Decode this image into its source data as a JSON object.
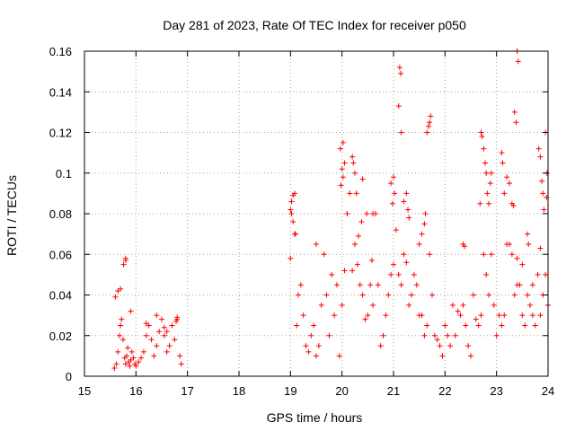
{
  "chart_data": {
    "type": "scatter",
    "title": "Day 281 of 2023, Rate Of TEC Index for receiver p050",
    "xlabel": "GPS time / hours",
    "ylabel": "ROTI / TECUs",
    "xlim": [
      15,
      24
    ],
    "ylim": [
      0,
      0.16
    ],
    "xticks": [
      "15",
      "16",
      "17",
      "18",
      "19",
      "20",
      "21",
      "22",
      "23",
      "24"
    ],
    "yticks": [
      "0",
      "0.02",
      "0.04",
      "0.06",
      "0.08",
      "0.1",
      "0.12",
      "0.14",
      "0.16"
    ],
    "grid": true,
    "marker": "+",
    "color": "#ff0000",
    "series": [
      {
        "name": "p050",
        "x": [
          15.58,
          15.62,
          15.65,
          15.68,
          15.7,
          15.72,
          15.75,
          15.78,
          15.8,
          15.82,
          15.84,
          15.86,
          15.88,
          15.9,
          15.92,
          15.95,
          15.98,
          16.0,
          16.05,
          16.1,
          16.15,
          16.2,
          16.25,
          16.3,
          16.35,
          16.4,
          16.45,
          16.5,
          16.55,
          16.6,
          16.65,
          16.7,
          16.75,
          16.8,
          16.85,
          16.88,
          15.6,
          15.7,
          15.8,
          15.9,
          16.2,
          16.4,
          16.6,
          16.8,
          15.76,
          15.8,
          15.65,
          16.55,
          16.78,
          19.0,
          19.02,
          19.05,
          19.08,
          19.1,
          19.12,
          19.15,
          19.2,
          19.25,
          19.3,
          19.35,
          19.4,
          19.45,
          19.5,
          19.55,
          19.6,
          19.65,
          19.7,
          19.75,
          19.8,
          19.85,
          19.9,
          19.95,
          20.0,
          20.05,
          20.1,
          20.15,
          20.2,
          20.25,
          20.3,
          20.35,
          20.4,
          20.45,
          20.5,
          20.55,
          20.6,
          20.65,
          20.7,
          20.75,
          20.8,
          20.85,
          20.9,
          20.95,
          21.0,
          21.05,
          21.1,
          21.15,
          21.2,
          21.25,
          21.3,
          21.35,
          21.4,
          21.45,
          21.5,
          21.55,
          21.6,
          21.65,
          21.7,
          21.75,
          21.8,
          21.85,
          21.9,
          21.95,
          22.0,
          22.05,
          22.1,
          22.15,
          22.2,
          22.25,
          22.3,
          22.35,
          22.4,
          22.45,
          22.5,
          22.55,
          22.6,
          22.65,
          22.7,
          22.75,
          22.8,
          22.85,
          22.9,
          22.95,
          23.0,
          23.05,
          23.1,
          23.15,
          23.2,
          23.25,
          23.3,
          23.35,
          23.4,
          23.45,
          23.5,
          23.55,
          23.6,
          23.65,
          23.7,
          23.75,
          23.8,
          23.85,
          23.9,
          23.95,
          24.0,
          19.0,
          19.05,
          19.02,
          19.08,
          19.5,
          20.0,
          20.05,
          20.02,
          19.98,
          20.2,
          20.25,
          20.28,
          20.22,
          20.02,
          19.97,
          20.48,
          20.4,
          20.38,
          20.32,
          20.6,
          20.58,
          21.0,
          20.95,
          20.98,
          21.02,
          21.12,
          21.14,
          21.1,
          21.15,
          21.2,
          21.25,
          21.28,
          21.3,
          21.7,
          21.72,
          21.68,
          21.65,
          21.62,
          21.6,
          21.55,
          21.5,
          22.35,
          22.38,
          22.7,
          22.72,
          22.75,
          22.78,
          22.8,
          22.82,
          22.85,
          22.68,
          22.9,
          22.88,
          23.1,
          23.12,
          23.15,
          23.2,
          23.25,
          23.3,
          23.33,
          23.35,
          23.38,
          23.4,
          23.42,
          23.6,
          23.62,
          23.82,
          23.85,
          23.88,
          23.9,
          23.92,
          23.95,
          23.98,
          23.97,
          23.85,
          23.4,
          23.5,
          23.7
        ],
        "y": [
          0.004,
          0.006,
          0.012,
          0.02,
          0.025,
          0.028,
          0.018,
          0.009,
          0.006,
          0.01,
          0.014,
          0.007,
          0.005,
          0.008,
          0.012,
          0.009,
          0.006,
          0.005,
          0.007,
          0.009,
          0.012,
          0.02,
          0.025,
          0.018,
          0.01,
          0.015,
          0.022,
          0.028,
          0.02,
          0.012,
          0.015,
          0.025,
          0.018,
          0.028,
          0.01,
          0.006,
          0.039,
          0.043,
          0.058,
          0.032,
          0.026,
          0.03,
          0.022,
          0.029,
          0.055,
          0.057,
          0.042,
          0.024,
          0.027,
          0.058,
          0.08,
          0.089,
          0.09,
          0.07,
          0.025,
          0.04,
          0.045,
          0.03,
          0.015,
          0.012,
          0.02,
          0.025,
          0.01,
          0.015,
          0.035,
          0.06,
          0.04,
          0.02,
          0.05,
          0.03,
          0.045,
          0.01,
          0.035,
          0.052,
          0.08,
          0.09,
          0.052,
          0.065,
          0.055,
          0.045,
          0.04,
          0.028,
          0.03,
          0.045,
          0.035,
          0.08,
          0.045,
          0.015,
          0.02,
          0.03,
          0.04,
          0.05,
          0.055,
          0.072,
          0.05,
          0.045,
          0.06,
          0.056,
          0.035,
          0.04,
          0.05,
          0.045,
          0.03,
          0.03,
          0.02,
          0.025,
          0.06,
          0.04,
          0.02,
          0.018,
          0.015,
          0.01,
          0.025,
          0.02,
          0.015,
          0.035,
          0.02,
          0.032,
          0.03,
          0.035,
          0.025,
          0.015,
          0.01,
          0.04,
          0.028,
          0.025,
          0.03,
          0.06,
          0.05,
          0.04,
          0.06,
          0.035,
          0.02,
          0.03,
          0.025,
          0.03,
          0.065,
          0.065,
          0.06,
          0.04,
          0.045,
          0.045,
          0.03,
          0.025,
          0.04,
          0.035,
          0.03,
          0.025,
          0.05,
          0.03,
          0.04,
          0.05,
          0.035,
          0.082,
          0.076,
          0.086,
          0.07,
          0.065,
          0.102,
          0.105,
          0.098,
          0.094,
          0.108,
          0.1,
          0.09,
          0.105,
          0.115,
          0.112,
          0.08,
          0.097,
          0.076,
          0.069,
          0.08,
          0.057,
          0.098,
          0.095,
          0.085,
          0.09,
          0.152,
          0.149,
          0.133,
          0.12,
          0.086,
          0.09,
          0.082,
          0.078,
          0.125,
          0.128,
          0.123,
          0.12,
          0.08,
          0.075,
          0.07,
          0.065,
          0.065,
          0.064,
          0.12,
          0.118,
          0.112,
          0.105,
          0.1,
          0.09,
          0.085,
          0.085,
          0.1,
          0.095,
          0.11,
          0.105,
          0.09,
          0.098,
          0.095,
          0.085,
          0.084,
          0.13,
          0.125,
          0.16,
          0.155,
          0.07,
          0.065,
          0.112,
          0.108,
          0.096,
          0.09,
          0.082,
          0.12,
          0.1,
          0.088,
          0.063,
          0.058,
          0.055,
          0.045
        ]
      }
    ]
  }
}
